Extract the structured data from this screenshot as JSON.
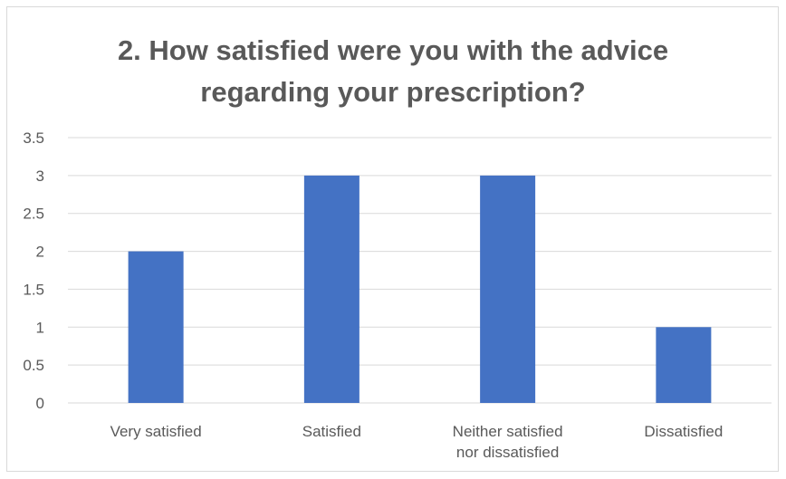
{
  "chart_data": {
    "type": "bar",
    "title_lines": [
      "2. How satisfied were you with the advice",
      "regarding your prescription?"
    ],
    "categories": [
      [
        "Very satisfied"
      ],
      [
        "Satisfied"
      ],
      [
        "Neither satisfied",
        "nor dissatisfied"
      ],
      [
        "Dissatisfied"
      ]
    ],
    "values": [
      2,
      3,
      3,
      1
    ],
    "ylim": [
      0,
      3.5
    ],
    "yticks": [
      "0",
      "0.5",
      "1",
      "1.5",
      "2",
      "2.5",
      "3",
      "3.5"
    ],
    "ytick_values": [
      0,
      0.5,
      1,
      1.5,
      2,
      2.5,
      3,
      3.5
    ],
    "grid": true,
    "legend": "none",
    "colors": {
      "bar": "#4472c4",
      "grid": "#d9d9d9",
      "text": "#595959"
    }
  }
}
